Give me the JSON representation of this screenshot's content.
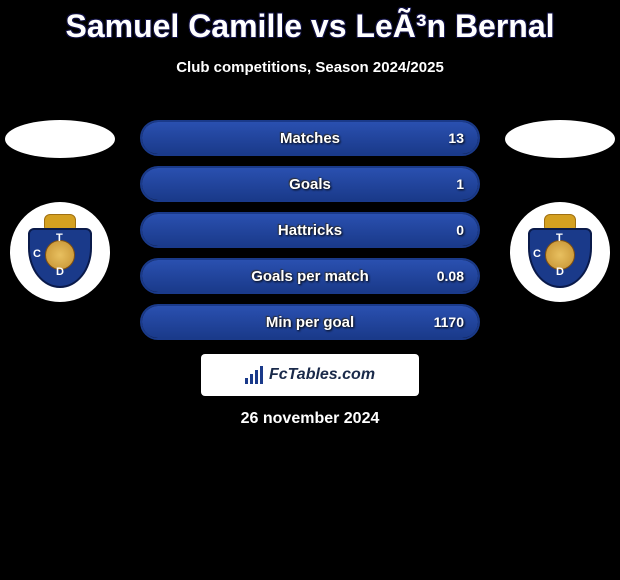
{
  "title": "Samuel Camille vs LeÃ³n Bernal",
  "subtitle": "Club competitions, Season 2024/2025",
  "date": "26 november 2024",
  "logo_text": "FcTables.com",
  "colors": {
    "accent": "#1a3a8a",
    "accent_light": "#2a50b0",
    "background": "#000000",
    "text": "#ffffff"
  },
  "players": {
    "left": {
      "club_letters": {
        "c": "C",
        "t": "T",
        "d": "D"
      }
    },
    "right": {
      "club_letters": {
        "c": "C",
        "t": "T",
        "d": "D"
      }
    }
  },
  "stats": [
    {
      "label": "Matches",
      "right_value": "13",
      "right_fill_pct": 100
    },
    {
      "label": "Goals",
      "right_value": "1",
      "right_fill_pct": 100
    },
    {
      "label": "Hattricks",
      "right_value": "0",
      "right_fill_pct": 100
    },
    {
      "label": "Goals per match",
      "right_value": "0.08",
      "right_fill_pct": 100
    },
    {
      "label": "Min per goal",
      "right_value": "1170",
      "right_fill_pct": 100
    }
  ]
}
